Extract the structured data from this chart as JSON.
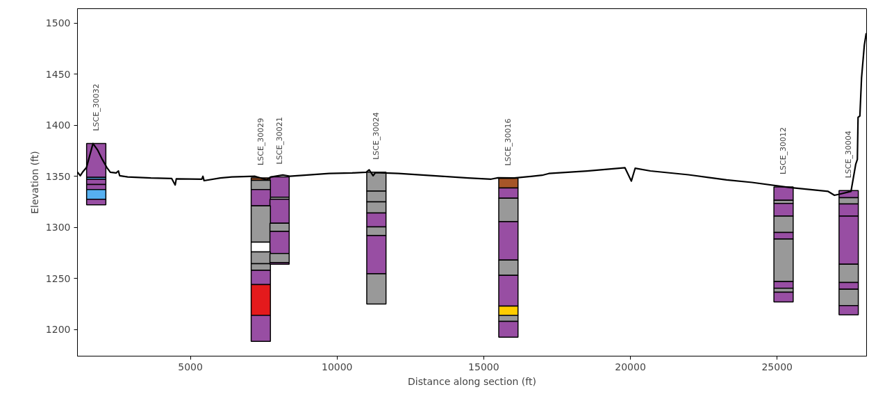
{
  "chart_data": {
    "type": "bar",
    "xlabel": "Distance along section (ft)",
    "ylabel": "Elevation (ft)",
    "xlim": [
      1150,
      28050
    ],
    "ylim": [
      1174,
      1514
    ],
    "xticks": [
      5000,
      10000,
      15000,
      20000,
      25000
    ],
    "yticks": [
      1200,
      1250,
      1300,
      1350,
      1400,
      1450,
      1500
    ],
    "grid": false,
    "x": [
      1790,
      7400,
      8040,
      11340,
      15840,
      25220,
      27440
    ],
    "series": [
      {
        "base": [
          1349,
          1346,
          1329.5,
          1335.5,
          1338.5,
          1326.5,
          1329
        ],
        "values": [
          33,
          2.5,
          20,
          18.5,
          9.5,
          13,
          7
        ],
        "colors": [
          "#984ea3",
          "#a65628",
          "#984ea3",
          "#999999",
          "#a65628",
          "#984ea3",
          "#984ea3"
        ]
      },
      {
        "base": [
          1347,
          1337,
          1327.5,
          1325,
          1328.5,
          1323.5,
          1323
        ],
        "values": [
          2,
          9,
          2,
          10.5,
          10,
          3,
          6
        ],
        "colors": [
          "#56b0f0",
          "#999999",
          "#999999",
          "#999999",
          "#984ea3",
          "#999999",
          "#999999"
        ]
      },
      {
        "base": [
          1342,
          1321,
          1304,
          1314,
          1305.5,
          1311,
          1311
        ],
        "values": [
          5,
          16,
          23.5,
          11,
          23,
          12.5,
          12
        ],
        "colors": [
          "#984ea3",
          "#984ea3",
          "#984ea3",
          "#999999",
          "#999999",
          "#984ea3",
          "#984ea3"
        ]
      },
      {
        "base": [
          1337,
          1285.5,
          1296,
          1300.5,
          1268,
          1295,
          1264
        ],
        "values": [
          5,
          35.5,
          8,
          13.5,
          37.5,
          16,
          47
        ],
        "colors": [
          "#984ea3",
          "#999999",
          "#999999",
          "#984ea3",
          "#984ea3",
          "#999999",
          "#984ea3"
        ]
      },
      {
        "base": [
          1327.5,
          1276,
          1274.5,
          1292,
          1253,
          1288.5,
          1246
        ],
        "values": [
          9.5,
          9.5,
          21.5,
          8.5,
          15,
          6.5,
          18
        ],
        "colors": [
          "#56b0f0",
          "#ffffff",
          "#984ea3",
          "#999999",
          "#999999",
          "#984ea3",
          "#999999"
        ]
      },
      {
        "base": [
          1322,
          1264.5,
          1265.5,
          1254.5,
          1223,
          1247,
          1239.5
        ],
        "values": [
          5.5,
          11.5,
          9,
          37.5,
          30,
          41.5,
          6.5
        ],
        "colors": [
          "#984ea3",
          "#999999",
          "#999999",
          "#984ea3",
          "#984ea3",
          "#999999",
          "#984ea3"
        ]
      },
      {
        "base": [
          null,
          1258,
          1264,
          1225,
          1214,
          1240.5,
          1223.5
        ],
        "values": [
          null,
          6.5,
          1.5,
          29.5,
          9,
          6.5,
          16
        ],
        "colors": [
          null,
          "#999999",
          "#984ea3",
          "#999999",
          "#ffcc00",
          "#984ea3",
          "#999999"
        ]
      },
      {
        "base": [
          null,
          1244,
          null,
          null,
          1208,
          1236.5,
          1214.5
        ],
        "values": [
          null,
          14,
          null,
          null,
          6,
          4,
          9
        ],
        "colors": [
          null,
          "#984ea3",
          null,
          null,
          "#999999",
          "#999999",
          "#984ea3"
        ]
      },
      {
        "base": [
          null,
          1214,
          null,
          null,
          1192.5,
          1227,
          null
        ],
        "values": [
          null,
          30,
          null,
          null,
          15.5,
          9.5,
          null
        ],
        "colors": [
          null,
          "#e41a1c",
          null,
          null,
          "#984ea3",
          "#984ea3",
          null
        ]
      },
      {
        "base": [
          null,
          1188.5,
          null,
          null,
          null,
          null,
          null
        ],
        "values": [
          null,
          25.5,
          null,
          null,
          null,
          null,
          null
        ],
        "colors": [
          null,
          "#984ea3",
          null,
          null,
          null,
          null,
          null
        ]
      },
      {
        "type": "line",
        "color": "#000000",
        "x": [
          1150,
          1246,
          1323,
          1458,
          1679,
          1837,
          1996,
          2152,
          2270,
          2469,
          2547,
          2588,
          2862,
          3653,
          4363,
          4482,
          4519,
          5388,
          5428,
          5466,
          6020,
          6413,
          7204,
          7597,
          7756,
          8151,
          8388,
          9728,
          10518,
          10992,
          11094,
          11229,
          11307,
          12095,
          13279,
          14463,
          15253,
          15488,
          16041,
          16989,
          17218,
          18516,
          19815,
          20031,
          20161,
          20682,
          21979,
          23277,
          24143,
          25440,
          26740,
          26955,
          27173,
          27519,
          27682,
          27736,
          27760,
          27822,
          27879,
          27974,
          28038
        ],
        "values": [
          1354,
          1350.6,
          1354,
          1358.6,
          1382,
          1375.7,
          1366.5,
          1358.6,
          1354,
          1353.3,
          1355.2,
          1350.6,
          1349.4,
          1348.3,
          1347.8,
          1341.5,
          1347.5,
          1347.2,
          1350,
          1345.7,
          1348.3,
          1349.4,
          1350,
          1346.5,
          1349.4,
          1351.3,
          1350.1,
          1352.8,
          1353.3,
          1354,
          1356.3,
          1350.6,
          1353.6,
          1352.8,
          1350.6,
          1348.3,
          1347.2,
          1348.5,
          1348.3,
          1351,
          1352.7,
          1355.2,
          1358.3,
          1345.3,
          1357.8,
          1355.2,
          1351.5,
          1346.5,
          1344,
          1339,
          1335.2,
          1331.4,
          1332.8,
          1335.2,
          1362,
          1366.5,
          1407.6,
          1409,
          1446.4,
          1478.4,
          1490
        ]
      }
    ],
    "annotations": [
      {
        "text": "LSCE_30032",
        "x": 1790,
        "y": 1382
      },
      {
        "text": "LSCE_30029",
        "x": 7400,
        "y": 1348.5
      },
      {
        "text": "LSCE_30021",
        "x": 8040,
        "y": 1349.5
      },
      {
        "text": "LSCE_30024",
        "x": 11340,
        "y": 1354
      },
      {
        "text": "LSCE_30016",
        "x": 15840,
        "y": 1348
      },
      {
        "text": "LSCE_30012",
        "x": 25220,
        "y": 1339.5
      },
      {
        "text": "LSCE_30004",
        "x": 27440,
        "y": 1336
      }
    ]
  }
}
